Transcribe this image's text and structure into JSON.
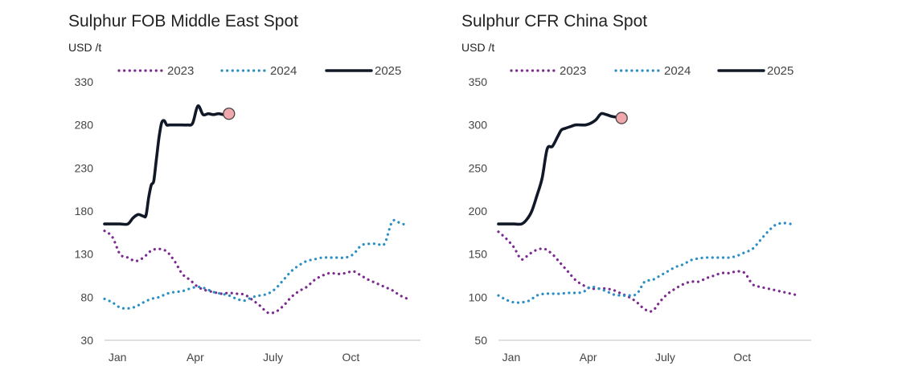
{
  "chart_data": [
    {
      "type": "line",
      "title": "Sulphur FOB Middle East Spot",
      "ylabel": "USD /t",
      "ylim": [
        30,
        330
      ],
      "yticks": [
        30,
        80,
        130,
        180,
        230,
        280,
        330
      ],
      "xlim": [
        0,
        12
      ],
      "xtick_labels": [
        {
          "label": "Jan",
          "x": 0.5
        },
        {
          "label": "Apr",
          "x": 3.5
        },
        {
          "label": "July",
          "x": 6.5
        },
        {
          "label": "Oct",
          "x": 9.5
        }
      ],
      "legend": "top",
      "series": [
        {
          "name": "2023",
          "style": "dotted",
          "color": "#7b2a8e",
          "x": [
            0.0,
            0.3,
            0.6,
            0.9,
            1.2,
            1.5,
            1.8,
            2.1,
            2.4,
            2.7,
            3.0,
            3.3,
            3.6,
            3.9,
            4.2,
            4.5,
            4.8,
            5.1,
            5.4,
            5.7,
            6.0,
            6.3,
            6.6,
            6.9,
            7.2,
            7.5,
            7.8,
            8.1,
            8.4,
            8.7,
            9.0,
            9.3,
            9.6,
            9.9,
            10.2,
            10.5,
            10.8,
            11.1,
            11.4,
            11.7
          ],
          "y": [
            157,
            150,
            130,
            126,
            122,
            126,
            134,
            136,
            133,
            122,
            107,
            100,
            92,
            88,
            86,
            84,
            85,
            84,
            83,
            77,
            70,
            62,
            63,
            70,
            80,
            87,
            92,
            100,
            105,
            108,
            107,
            108,
            110,
            105,
            100,
            96,
            92,
            88,
            82,
            78
          ]
        },
        {
          "name": "2024",
          "style": "dotted",
          "color": "#2b8fc4",
          "x": [
            0.0,
            0.3,
            0.6,
            0.9,
            1.2,
            1.5,
            1.8,
            2.1,
            2.4,
            2.7,
            3.0,
            3.3,
            3.6,
            3.9,
            4.2,
            4.5,
            4.8,
            5.1,
            5.4,
            5.7,
            6.0,
            6.3,
            6.6,
            6.9,
            7.2,
            7.5,
            7.8,
            8.1,
            8.4,
            8.7,
            9.0,
            9.3,
            9.6,
            9.9,
            10.2,
            10.5,
            10.8,
            11.1,
            11.4,
            11.7
          ],
          "y": [
            78,
            74,
            68,
            67,
            69,
            74,
            78,
            80,
            84,
            86,
            87,
            90,
            92,
            90,
            86,
            84,
            82,
            78,
            76,
            80,
            82,
            84,
            90,
            100,
            110,
            117,
            122,
            124,
            126,
            126,
            126,
            126,
            130,
            140,
            142,
            142,
            142,
            168,
            166,
            163
          ]
        },
        {
          "name": "2025",
          "style": "solid",
          "color": "#111827",
          "x": [
            0.0,
            0.3,
            0.6,
            0.9,
            1.1,
            1.3,
            1.5,
            1.6,
            1.7,
            1.8,
            1.9,
            2.0,
            2.1,
            2.2,
            2.3,
            2.4,
            2.5,
            2.6,
            2.8,
            3.0,
            3.2,
            3.4,
            3.6,
            3.8,
            4.0,
            4.2,
            4.4,
            4.6,
            4.8
          ],
          "y": [
            165,
            165,
            165,
            165,
            172,
            176,
            174,
            175,
            195,
            210,
            215,
            240,
            265,
            282,
            285,
            280,
            280,
            280,
            280,
            280,
            280,
            282,
            302,
            292,
            293,
            292,
            293,
            292,
            293
          ]
        }
      ],
      "end_marker": {
        "x": 4.8,
        "y": 293,
        "color": "#f0a8ac"
      }
    },
    {
      "type": "line",
      "title": "Sulphur CFR China Spot",
      "ylabel": "USD /t",
      "ylim": [
        50,
        350
      ],
      "yticks": [
        50,
        100,
        150,
        200,
        250,
        300,
        350
      ],
      "xlim": [
        0,
        12
      ],
      "xtick_labels": [
        {
          "label": "Jan",
          "x": 0.5
        },
        {
          "label": "Apr",
          "x": 3.5
        },
        {
          "label": "July",
          "x": 6.5
        },
        {
          "label": "Oct",
          "x": 9.5
        }
      ],
      "legend": "top",
      "series": [
        {
          "name": "2023",
          "style": "dotted",
          "color": "#7b2a8e",
          "x": [
            0.0,
            0.3,
            0.6,
            0.9,
            1.2,
            1.5,
            1.8,
            2.1,
            2.4,
            2.7,
            3.0,
            3.3,
            3.6,
            3.9,
            4.2,
            4.5,
            4.8,
            5.1,
            5.4,
            5.7,
            6.0,
            6.3,
            6.6,
            6.9,
            7.2,
            7.5,
            7.8,
            8.1,
            8.4,
            8.7,
            9.0,
            9.3,
            9.6,
            9.9,
            10.2,
            10.5,
            10.8,
            11.1,
            11.4,
            11.7
          ],
          "y": [
            176,
            168,
            158,
            144,
            150,
            155,
            156,
            150,
            140,
            130,
            120,
            114,
            110,
            110,
            110,
            108,
            104,
            100,
            94,
            86,
            84,
            95,
            104,
            110,
            115,
            118,
            118,
            122,
            125,
            128,
            128,
            130,
            128,
            115,
            112,
            110,
            108,
            106,
            104,
            102
          ]
        },
        {
          "name": "2024",
          "style": "dotted",
          "color": "#2b8fc4",
          "x": [
            0.0,
            0.3,
            0.6,
            0.9,
            1.2,
            1.5,
            1.8,
            2.1,
            2.4,
            2.7,
            3.0,
            3.3,
            3.6,
            3.9,
            4.2,
            4.5,
            4.8,
            5.1,
            5.4,
            5.7,
            6.0,
            6.3,
            6.6,
            6.9,
            7.2,
            7.5,
            7.8,
            8.1,
            8.4,
            8.7,
            9.0,
            9.3,
            9.6,
            9.9,
            10.2,
            10.5,
            10.8,
            11.1,
            11.4
          ],
          "y": [
            102,
            97,
            94,
            94,
            96,
            102,
            104,
            104,
            104,
            105,
            105,
            106,
            112,
            110,
            107,
            103,
            102,
            102,
            104,
            118,
            120,
            125,
            130,
            135,
            138,
            143,
            145,
            146,
            146,
            146,
            146,
            148,
            152,
            156,
            166,
            176,
            184,
            186,
            185
          ]
        },
        {
          "name": "2025",
          "style": "solid",
          "color": "#111827",
          "x": [
            0.0,
            0.3,
            0.6,
            0.9,
            1.1,
            1.3,
            1.5,
            1.7,
            1.9,
            2.1,
            2.3,
            2.45,
            2.6,
            2.8,
            3.0,
            3.2,
            3.4,
            3.6,
            3.8,
            4.0,
            4.2,
            4.4,
            4.6,
            4.8
          ],
          "y": [
            185,
            185,
            185,
            185,
            190,
            200,
            218,
            238,
            272,
            275,
            286,
            294,
            296,
            298,
            300,
            300,
            300,
            302,
            306,
            313,
            312,
            310,
            309,
            308
          ]
        }
      ],
      "end_marker": {
        "x": 4.8,
        "y": 308,
        "color": "#f0a8ac"
      }
    }
  ]
}
